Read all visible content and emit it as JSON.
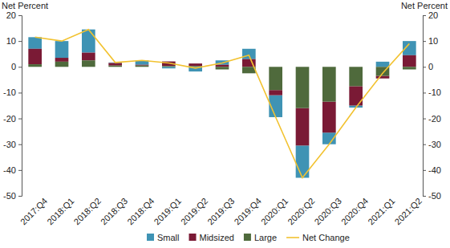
{
  "chart_data": {
    "type": "bar",
    "stacked": true,
    "grid": false,
    "legend": "bottom",
    "y_label": "Net Percent",
    "y2_label": "Net Percent",
    "categories": [
      "2017:Q4",
      "2018:Q1",
      "2018:Q2",
      "2018:Q3",
      "2018:Q4",
      "2019:Q1",
      "2019:Q2",
      "2019:Q3",
      "2019:Q4",
      "2020:Q1",
      "2020:Q2",
      "2020:Q3",
      "2020:Q4",
      "2021:Q1",
      "2021:Q2"
    ],
    "series": [
      {
        "name": "Small",
        "type": "bar",
        "color": "#3f93b4",
        "values": [
          4.5,
          6.5,
          9,
          0.2,
          1.7,
          -0.6,
          -1.8,
          1.7,
          4,
          -8.5,
          -12.5,
          -4.5,
          -0.8,
          2,
          5.5
        ]
      },
      {
        "name": "Midsized",
        "type": "bar",
        "color": "#7a1a35",
        "values": [
          6,
          1.5,
          3,
          1,
          0.3,
          1.8,
          1,
          0.8,
          3,
          -2,
          -14.5,
          -12,
          -7.5,
          -1,
          4.5
        ]
      },
      {
        "name": "Large",
        "type": "bar",
        "color": "#4f6a3c",
        "values": [
          1,
          2,
          2.5,
          0.5,
          0.5,
          0.3,
          0.3,
          -1,
          -2.5,
          -9,
          -16,
          -13.5,
          -7.5,
          -3.5,
          -1
        ]
      },
      {
        "name": "Net Change",
        "type": "line",
        "color": "#f2c230",
        "values": [
          11.5,
          10,
          14.5,
          1.7,
          2.5,
          1.5,
          -0.5,
          1.5,
          4.5,
          -19.5,
          -43,
          -30,
          -15.8,
          -2.5,
          9
        ]
      }
    ],
    "ylim": [
      -50,
      20
    ],
    "yticks": [
      -50,
      -40,
      -30,
      -20,
      -10,
      0,
      10,
      20
    ],
    "y2lim": [
      -50,
      20
    ],
    "y2ticks": [
      -50,
      -40,
      -30,
      -20,
      -10,
      0,
      10,
      20
    ]
  }
}
